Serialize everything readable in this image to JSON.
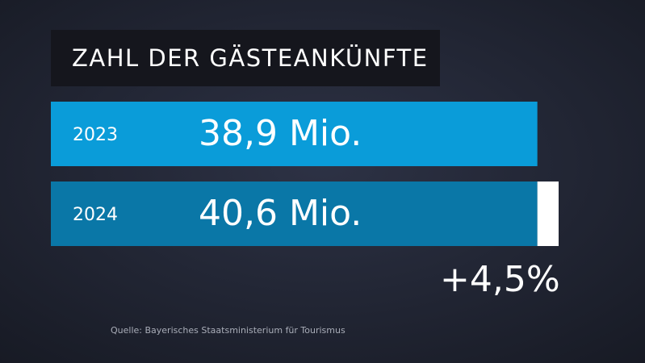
{
  "chart_data": {
    "type": "bar",
    "orientation": "horizontal",
    "title": "ZAHL DER GÄSTEANKÜNFTE",
    "categories": [
      "2023",
      "2024"
    ],
    "values": [
      38.9,
      40.6
    ],
    "value_labels": [
      "38,9 Mio.",
      "40,6 Mio."
    ],
    "colors": [
      "#0a9cd9",
      "#0a77a7"
    ],
    "increase_color": "#ffffff",
    "annotation": "+4,5%",
    "source": "Quelle: Bayerisches Staatsministerium für Tourismus"
  }
}
